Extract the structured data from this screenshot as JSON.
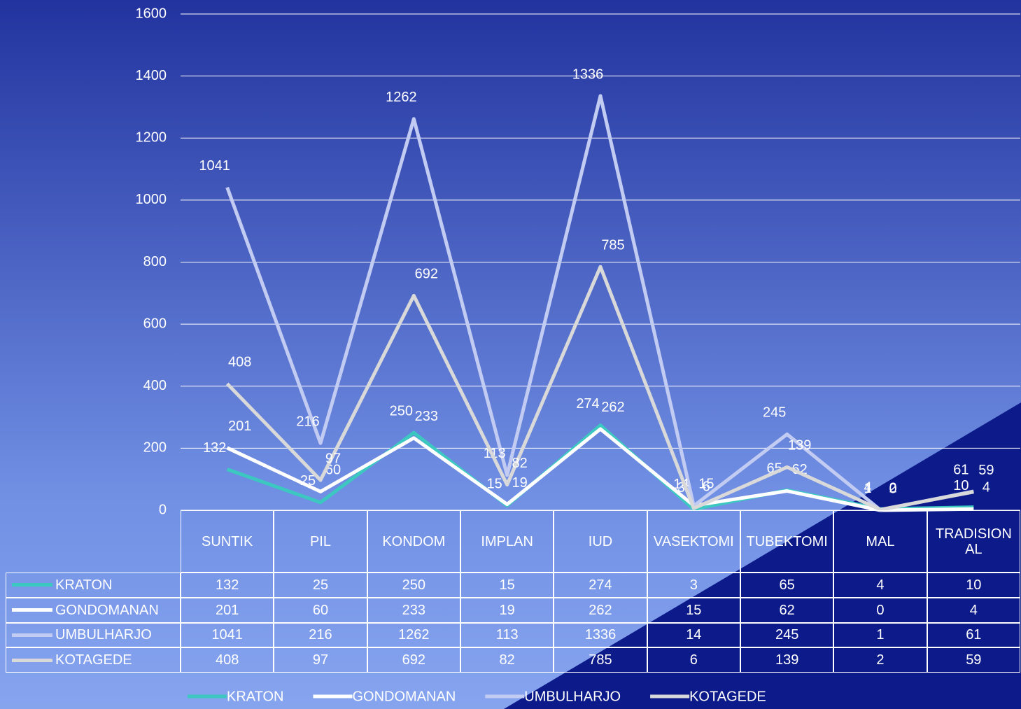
{
  "chart_data": {
    "type": "line",
    "categories": [
      "SUNTIK",
      "PIL",
      "KONDOM",
      "IMPLAN",
      "IUD",
      "VASEKTOMI",
      "TUBEKTOMI",
      "MAL",
      "TRADISIONAL"
    ],
    "series": [
      {
        "name": "KRATON",
        "color": "#3cc8c0",
        "values": [
          132,
          25,
          250,
          15,
          274,
          3,
          65,
          4,
          10
        ]
      },
      {
        "name": "GONDOMANAN",
        "color": "#ffffff",
        "values": [
          201,
          60,
          233,
          19,
          262,
          15,
          62,
          0,
          4
        ]
      },
      {
        "name": "UMBULHARJO",
        "color": "#c2cbf2",
        "values": [
          1041,
          216,
          1262,
          113,
          1336,
          14,
          245,
          1,
          61
        ]
      },
      {
        "name": "KOTAGEDE",
        "color": "#d9d9d9",
        "values": [
          408,
          97,
          692,
          82,
          785,
          6,
          139,
          2,
          59
        ]
      }
    ],
    "ylim": [
      0,
      1600
    ],
    "yticks": [
      0,
      200,
      400,
      600,
      800,
      1000,
      1200,
      1400,
      1600
    ],
    "grid": true,
    "legend": "bottom",
    "data_table": true
  }
}
